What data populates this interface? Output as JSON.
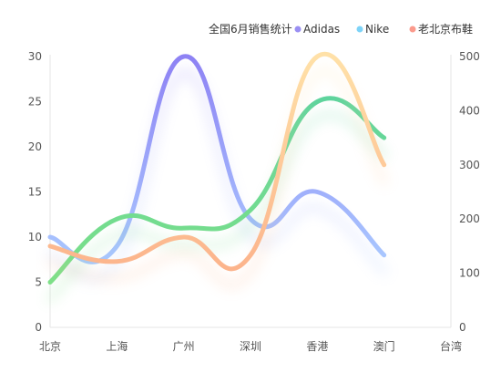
{
  "chart_data": {
    "type": "line",
    "smooth": true,
    "legend_position": "top-right",
    "legend_title": "全国6月销售统计",
    "categories": [
      "北京",
      "上海",
      "广州",
      "深圳",
      "香港",
      "澳门",
      "台湾"
    ],
    "y_left": {
      "min": 0,
      "max": 30,
      "ticks": [
        0,
        5,
        10,
        15,
        20,
        25,
        30
      ]
    },
    "y_right": {
      "min": 0,
      "max": 500,
      "ticks": [
        0,
        100,
        200,
        300,
        400,
        500
      ]
    },
    "grid": false,
    "series": [
      {
        "name": "Adidas",
        "axis": "left",
        "values": [
          10,
          9,
          30,
          12,
          15,
          8,
          null
        ],
        "legend_color": "#9a8ff3",
        "gradient": [
          "#8e82f4",
          "#a9c8ff"
        ]
      },
      {
        "name": "Nike",
        "axis": "left",
        "values": [
          5,
          12,
          11,
          13,
          25,
          21,
          null
        ],
        "legend_color": "#7dd3f8",
        "gradient": [
          "#5ed49d",
          "#7ee088"
        ]
      },
      {
        "name": "老北京布鞋",
        "axis": "left",
        "values": [
          9,
          7.3,
          10,
          8,
          30,
          18,
          null
        ],
        "legend_color": "#fb9a8c",
        "gradient": [
          "#ffe1a8",
          "#fcb48c"
        ]
      }
    ]
  }
}
